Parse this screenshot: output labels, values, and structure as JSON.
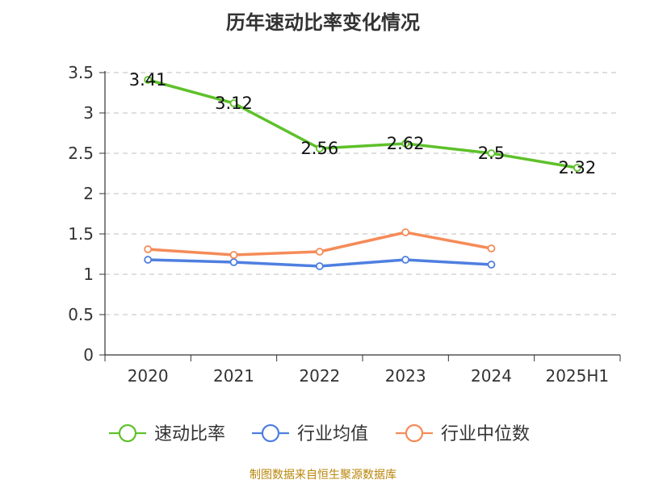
{
  "chart_data": {
    "type": "line",
    "title": "历年速动比率变化情况",
    "categories": [
      "2020",
      "2021",
      "2022",
      "2023",
      "2024",
      "2025H1"
    ],
    "y_ticks": [
      "0",
      "0.5",
      "1",
      "1.5",
      "2",
      "2.5",
      "3",
      "3.5"
    ],
    "ylim": [
      0,
      3.5
    ],
    "grid": true,
    "legend_position": "bottom-center",
    "series": [
      {
        "name": "速动比率",
        "color": "#5ec12a",
        "values": [
          3.41,
          3.12,
          2.56,
          2.62,
          2.5,
          2.32
        ],
        "labels": [
          "3.41",
          "3.12",
          "2.56",
          "2.62",
          "2.5",
          "2.32"
        ]
      },
      {
        "name": "行业均值",
        "color": "#4f7fe0",
        "values": [
          1.18,
          1.15,
          1.1,
          1.18,
          1.12,
          null
        ]
      },
      {
        "name": "行业中位数",
        "color": "#f58b58",
        "values": [
          1.31,
          1.24,
          1.28,
          1.52,
          1.32,
          null
        ]
      }
    ]
  },
  "source_note": "制图数据来自恒生聚源数据库"
}
